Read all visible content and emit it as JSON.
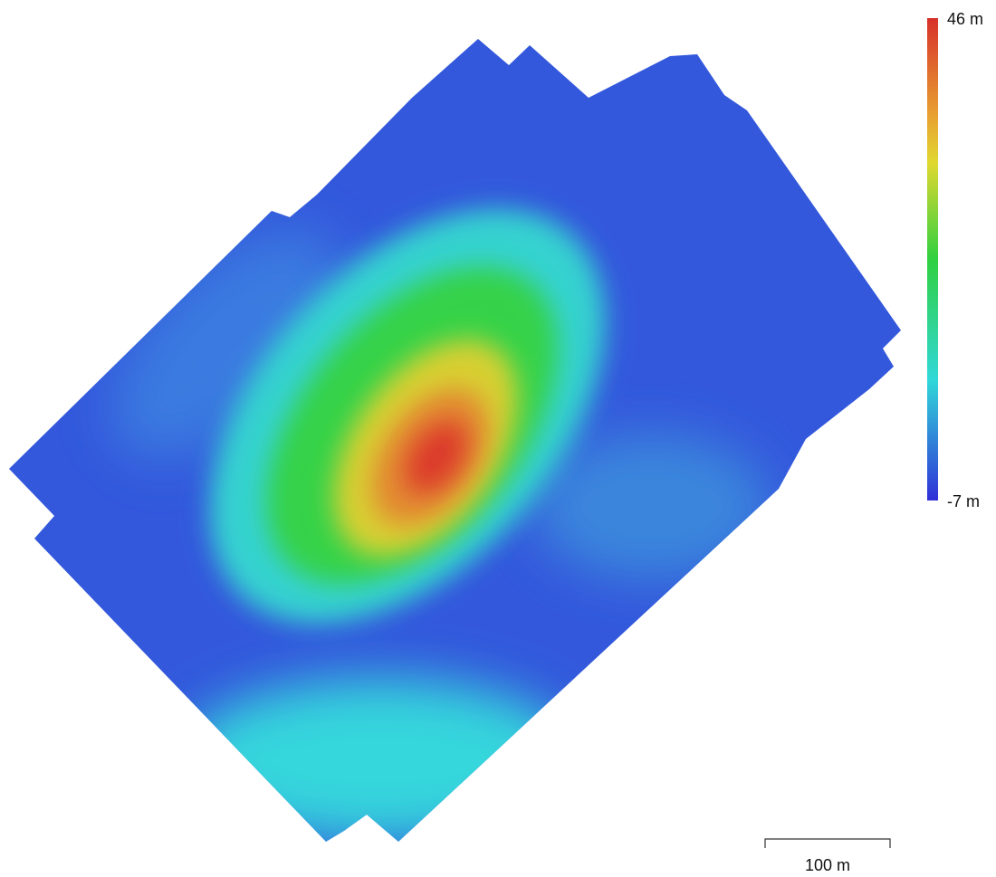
{
  "legend": {
    "max_label": "46 m",
    "min_label": "-7 m"
  },
  "scale_bar": {
    "label": "100 m"
  }
}
